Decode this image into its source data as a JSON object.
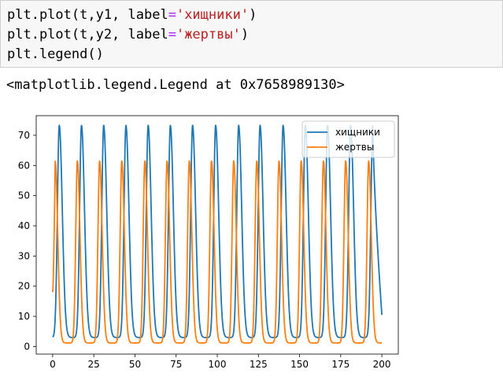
{
  "code_cell": {
    "lines": [
      {
        "pre": "plt.plot(t,y1, label",
        "op": "=",
        "str": "'хищники'",
        "post": ")"
      },
      {
        "pre": "plt.plot(t,y2, label",
        "op": "=",
        "str": "'жертвы'",
        "post": ")"
      },
      {
        "pre": "plt.legend()",
        "op": "",
        "str": "",
        "post": ""
      }
    ]
  },
  "output": {
    "text": "<matplotlib.legend.Legend at 0x7658989130>"
  },
  "chart_data": {
    "type": "line",
    "x": {
      "min": 0,
      "max": 200
    },
    "xlim": [
      -10,
      210
    ],
    "ylim": [
      -2.5,
      76.5
    ],
    "xticks": [
      0,
      25,
      50,
      75,
      100,
      125,
      150,
      175,
      200
    ],
    "yticks": [
      0,
      10,
      20,
      30,
      40,
      50,
      60,
      70
    ],
    "legend_position": "top-right",
    "grid": false,
    "series": [
      {
        "name": "хищники",
        "color": "#1f77b4",
        "peak_value": 73.3,
        "trough_value": 3.0,
        "end_value": 10.5,
        "peak_times": [
          4,
          17.5,
          31,
          44.5,
          58,
          71.5,
          85,
          99,
          113,
          126,
          140,
          153.5,
          167,
          181,
          194.5
        ]
      },
      {
        "name": "жертвы",
        "color": "#ff7f0e",
        "start_value": 18,
        "peak_value": 61.5,
        "trough_value": 1.2,
        "end_value": 1.5,
        "peak_times": [
          1.5,
          15,
          28.5,
          42,
          56,
          69.5,
          83,
          96.5,
          110,
          124,
          137.5,
          151,
          164.5,
          178,
          192
        ]
      }
    ]
  }
}
